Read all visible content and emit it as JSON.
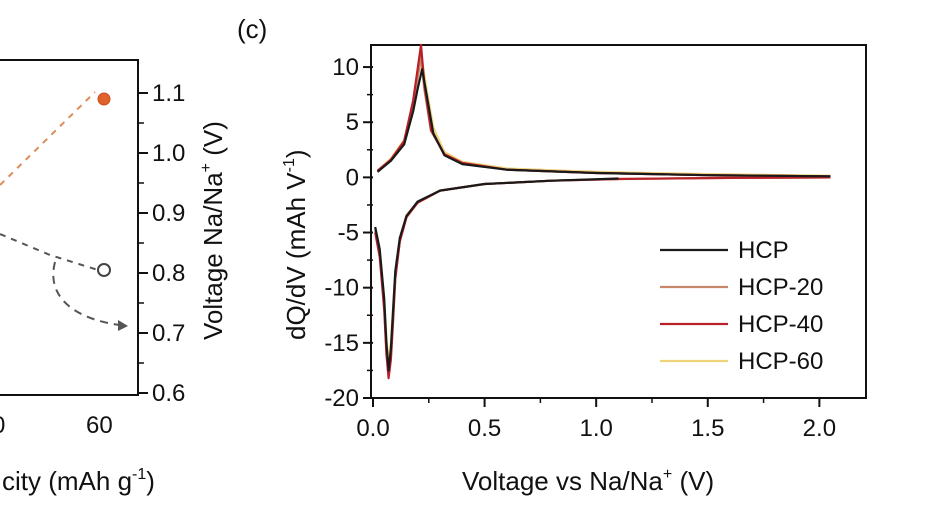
{
  "chart_data": [
    {
      "type": "scatter",
      "panel": "",
      "title": "",
      "xlabel_visible": "city (mAh g",
      "xlabel_sup": "-1",
      "xlabel_close": ")",
      "x_tick_labels": [
        "0",
        "60"
      ],
      "ylabel_right": "Voltage Na/Na",
      "ylabel_right_sup": "+",
      "ylabel_right_unit": " (V)",
      "ylim_right": [
        0.6,
        1.1
      ],
      "y_ticks_right": [
        0.6,
        0.7,
        0.8,
        0.9,
        1.0,
        1.1
      ],
      "y_tick_labels_right": [
        "0.6",
        "0.7",
        "0.8",
        "0.9",
        "1.0",
        "1.1"
      ],
      "points": [
        {
          "x": 60,
          "y": 1.09,
          "style": "filled",
          "color": "#e0622b"
        },
        {
          "x": 60,
          "y": 0.805,
          "style": "open",
          "color": "#555555"
        }
      ],
      "marker_arrow_y": 0.715
    },
    {
      "type": "line",
      "panel": "(c)",
      "title": "",
      "xlabel": "Voltage vs Na/Na",
      "xlabel_sup": "+",
      "xlabel_unit": " (V)",
      "ylabel": "dQ/dV (mAh V",
      "ylabel_sup": "-1",
      "ylabel_close": ")",
      "xlim": [
        0.0,
        2.2
      ],
      "ylim": [
        -20,
        12
      ],
      "x_ticks": [
        0.0,
        0.5,
        1.0,
        1.5,
        2.0
      ],
      "x_tick_labels": [
        "0.0",
        "0.5",
        "1.0",
        "1.5",
        "2.0"
      ],
      "y_ticks": [
        -20,
        -15,
        -10,
        -5,
        0,
        5,
        10
      ],
      "y_tick_labels": [
        "-20",
        "-15",
        "-10",
        "-5",
        "0",
        "5",
        "10"
      ],
      "legend_position": "lower-right",
      "series": [
        {
          "name": "HCP",
          "color": "#1a1a1a",
          "desorption": {
            "x": [
              0.02,
              0.08,
              0.14,
              0.18,
              0.2,
              0.22,
              0.24,
              0.27,
              0.32,
              0.4,
              0.6,
              1.0,
              1.5,
              2.05
            ],
            "y": [
              0.5,
              1.5,
              3.0,
              6.0,
              8.0,
              9.8,
              7.5,
              4.0,
              2.0,
              1.2,
              0.7,
              0.4,
              0.2,
              0.1
            ]
          },
          "insertion": {
            "x": [
              1.1,
              0.8,
              0.5,
              0.3,
              0.2,
              0.15,
              0.12,
              0.1,
              0.09,
              0.08,
              0.07,
              0.06,
              0.05,
              0.03,
              0.01
            ],
            "y": [
              -0.1,
              -0.3,
              -0.6,
              -1.2,
              -2.2,
              -3.5,
              -5.5,
              -8.5,
              -12.0,
              -15.5,
              -17.5,
              -15.0,
              -11.0,
              -6.5,
              -4.5
            ]
          }
        },
        {
          "name": "HCP-20",
          "color": "#c8866a",
          "desorption": {
            "x": [
              0.02,
              0.08,
              0.14,
              0.18,
              0.2,
              0.215,
              0.23,
              0.26,
              0.32,
              0.4,
              0.6,
              1.0,
              1.5,
              2.05
            ],
            "y": [
              0.6,
              1.6,
              3.2,
              6.5,
              9.0,
              11.0,
              8.0,
              4.2,
              2.1,
              1.3,
              0.7,
              0.4,
              0.2,
              0.1
            ]
          },
          "insertion": {
            "x": [
              2.05,
              1.6,
              1.1,
              0.8,
              0.5,
              0.3,
              0.2,
              0.15,
              0.12,
              0.1,
              0.09,
              0.08,
              0.07,
              0.06,
              0.05,
              0.03,
              0.01
            ],
            "y": [
              0.0,
              -0.05,
              -0.15,
              -0.3,
              -0.6,
              -1.2,
              -2.3,
              -3.6,
              -5.8,
              -9.0,
              -12.5,
              -16.0,
              -17.8,
              -15.5,
              -11.5,
              -7.0,
              -4.8
            ]
          }
        },
        {
          "name": "HCP-40",
          "color": "#b8202a",
          "desorption": {
            "x": [
              0.02,
              0.08,
              0.14,
              0.18,
              0.2,
              0.215,
              0.23,
              0.26,
              0.32,
              0.4,
              0.6,
              1.0,
              1.5,
              2.05
            ],
            "y": [
              0.6,
              1.6,
              3.3,
              7.0,
              9.8,
              12.0,
              8.5,
              4.3,
              2.1,
              1.3,
              0.7,
              0.4,
              0.2,
              0.1
            ]
          },
          "insertion": {
            "x": [
              2.05,
              1.6,
              1.1,
              0.8,
              0.5,
              0.3,
              0.2,
              0.15,
              0.12,
              0.1,
              0.09,
              0.08,
              0.07,
              0.06,
              0.05,
              0.03,
              0.01
            ],
            "y": [
              0.0,
              -0.05,
              -0.15,
              -0.3,
              -0.6,
              -1.2,
              -2.3,
              -3.6,
              -5.8,
              -9.2,
              -13.0,
              -16.5,
              -18.2,
              -16.0,
              -12.0,
              -7.2,
              -5.0
            ]
          }
        },
        {
          "name": "HCP-60",
          "color": "#f0d27a",
          "desorption": {
            "x": [
              0.02,
              0.08,
              0.14,
              0.18,
              0.2,
              0.22,
              0.24,
              0.27,
              0.32,
              0.4,
              0.6,
              1.0,
              1.5,
              2.05
            ],
            "y": [
              0.6,
              1.7,
              3.4,
              6.8,
              9.2,
              10.5,
              8.0,
              4.5,
              2.3,
              1.4,
              0.8,
              0.5,
              0.3,
              0.15
            ]
          },
          "insertion": {
            "x": [
              2.05,
              1.6,
              1.1,
              0.8,
              0.5,
              0.3,
              0.2,
              0.15,
              0.12,
              0.1,
              0.09,
              0.08,
              0.07,
              0.06,
              0.05,
              0.03,
              0.01
            ],
            "y": [
              0.0,
              -0.05,
              -0.15,
              -0.3,
              -0.6,
              -1.2,
              -2.3,
              -3.4,
              -5.5,
              -8.5,
              -11.8,
              -15.0,
              -16.8,
              -14.5,
              -11.0,
              -6.8,
              -4.6
            ]
          }
        }
      ]
    }
  ]
}
